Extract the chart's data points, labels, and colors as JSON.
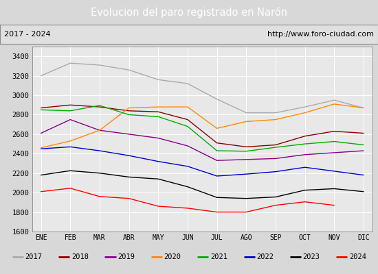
{
  "title": "Evolucion del paro registrado en Narón",
  "subtitle_left": "2017 - 2024",
  "subtitle_right": "http://www.foro-ciudad.com",
  "title_bg_color": "#4080c0",
  "title_text_color": "white",
  "subtitle_bg_color": "#e0e0e0",
  "plot_bg_color": "#e8e8e8",
  "outer_bg_color": "#d8d8d8",
  "months": [
    "ENE",
    "FEB",
    "MAR",
    "ABR",
    "MAY",
    "JUN",
    "JUL",
    "AGO",
    "SEP",
    "OCT",
    "NOV",
    "DIC"
  ],
  "ylim": [
    1600,
    3500
  ],
  "yticks": [
    1600,
    1800,
    2000,
    2200,
    2400,
    2600,
    2800,
    3000,
    3200,
    3400
  ],
  "series": {
    "2017": {
      "color": "#aaaaaa",
      "data": [
        3200,
        3330,
        3310,
        3260,
        3160,
        3120,
        2960,
        2820,
        2820,
        2880,
        2950,
        2870
      ]
    },
    "2018": {
      "color": "#880000",
      "data": [
        2870,
        2900,
        2880,
        2840,
        2830,
        2750,
        2510,
        2470,
        2490,
        2580,
        2630,
        2610
      ]
    },
    "2019": {
      "color": "#880088",
      "data": [
        2610,
        2750,
        2640,
        2600,
        2560,
        2480,
        2330,
        2340,
        2350,
        2390,
        2410,
        2430
      ]
    },
    "2020": {
      "color": "#ff8800",
      "data": [
        2460,
        2530,
        2640,
        2870,
        2880,
        2880,
        2660,
        2730,
        2750,
        2820,
        2910,
        2870
      ]
    },
    "2021": {
      "color": "#00aa00",
      "data": [
        2850,
        2840,
        2895,
        2800,
        2780,
        2680,
        2430,
        2425,
        2465,
        2500,
        2525,
        2490
      ]
    },
    "2022": {
      "color": "#0000cc",
      "data": [
        2450,
        2470,
        2430,
        2380,
        2320,
        2270,
        2170,
        2190,
        2215,
        2260,
        2220,
        2180
      ]
    },
    "2023": {
      "color": "#000000",
      "data": [
        2180,
        2225,
        2200,
        2160,
        2140,
        2060,
        1950,
        1940,
        1955,
        2025,
        2040,
        2010
      ]
    },
    "2024": {
      "color": "#ff0000",
      "data": [
        2010,
        2045,
        1960,
        1940,
        1860,
        1840,
        1800,
        1800,
        1870,
        1905,
        1870,
        null
      ]
    }
  }
}
